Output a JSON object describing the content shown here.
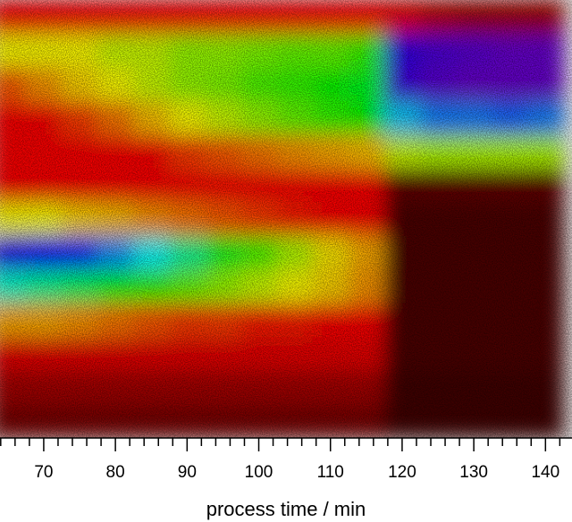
{
  "chart_data": {
    "type": "heatmap",
    "x_label": "process time / min",
    "xlim": [
      63.9,
      143.7
    ],
    "xticks": [
      70,
      80,
      90,
      100,
      110,
      120,
      130,
      140
    ],
    "x_minor_ticks": [
      64,
      66,
      68,
      72,
      74,
      76,
      78,
      82,
      84,
      86,
      88,
      92,
      94,
      96,
      98,
      102,
      104,
      106,
      108,
      112,
      114,
      116,
      118,
      122,
      124,
      126,
      128,
      132,
      134,
      136,
      138,
      142
    ],
    "x": [
      65,
      70,
      75,
      80,
      85,
      90,
      95,
      100,
      105,
      110,
      115,
      120,
      125,
      130,
      135,
      140
    ],
    "colormap": [
      {
        "value": 0,
        "color": "#1e0000"
      },
      {
        "value": 1,
        "color": "#ff0000"
      },
      {
        "value": 1.5,
        "color": "#ff9900"
      },
      {
        "value": 2,
        "color": "#ffff00"
      },
      {
        "value": 3,
        "color": "#00ff00"
      },
      {
        "value": 4,
        "color": "#00ffff"
      },
      {
        "value": 5,
        "color": "#0000ff"
      },
      {
        "value": 6,
        "color": "#8000c0"
      }
    ],
    "z": [
      [
        1,
        1,
        1,
        1,
        1,
        1,
        1,
        1,
        1,
        1,
        1,
        0.9,
        0.7,
        0.6,
        0.6,
        0.6
      ],
      [
        2,
        2,
        2,
        2.2,
        2.2,
        2.4,
        2.4,
        2.5,
        2.6,
        2.6,
        2.8,
        5.4,
        5.6,
        5.7,
        5.8,
        5.8
      ],
      [
        1.3,
        1.5,
        1.8,
        2,
        2.2,
        2.4,
        2.5,
        2.7,
        2.8,
        3,
        3.1,
        5.5,
        5.7,
        5.8,
        5.8,
        5.8
      ],
      [
        1,
        1,
        1.2,
        1.4,
        1.7,
        2,
        2.2,
        2.4,
        2.6,
        2.8,
        3,
        4.2,
        4.5,
        4.5,
        4.6,
        4.5
      ],
      [
        1,
        1,
        1,
        1,
        1,
        1.2,
        1.3,
        1.4,
        1.5,
        1.6,
        1.7,
        2.2,
        2.3,
        2.3,
        2.3,
        2.3
      ],
      [
        1,
        1,
        1,
        1,
        1,
        1,
        1,
        1,
        1,
        1,
        1,
        0.3,
        0.3,
        0.3,
        0.3,
        0.3
      ],
      [
        2,
        2,
        1.8,
        1.7,
        1.5,
        1.4,
        1.3,
        1.2,
        1.1,
        1,
        1,
        0.2,
        0.2,
        0.2,
        0.2,
        0.2
      ],
      [
        5.2,
        5,
        4.8,
        4.4,
        4,
        3.6,
        3.1,
        2.7,
        2.3,
        1.9,
        1.6,
        0.2,
        0.2,
        0.2,
        0.2,
        0.2
      ],
      [
        3.8,
        3.6,
        3.4,
        3.1,
        2.8,
        2.6,
        2.4,
        2.2,
        2,
        1.8,
        1.5,
        0.2,
        0.2,
        0.2,
        0.2,
        0.2
      ],
      [
        1.6,
        1.6,
        1.5,
        1.4,
        1.3,
        1.2,
        1.2,
        1.1,
        1.1,
        1,
        1,
        0.2,
        0.2,
        0.2,
        0.2,
        0.2
      ],
      [
        0.9,
        0.9,
        0.9,
        0.9,
        0.9,
        0.9,
        0.9,
        0.9,
        0.9,
        0.9,
        0.9,
        0.2,
        0.2,
        0.2,
        0.2,
        0.2
      ],
      [
        0.6,
        0.6,
        0.6,
        0.6,
        0.6,
        0.6,
        0.6,
        0.6,
        0.6,
        0.6,
        0.6,
        0.15,
        0.15,
        0.15,
        0.15,
        0.15
      ],
      [
        0.4,
        0.4,
        0.4,
        0.4,
        0.4,
        0.4,
        0.4,
        0.4,
        0.4,
        0.4,
        0.4,
        0.15,
        0.15,
        0.15,
        0.15,
        0.15
      ]
    ]
  }
}
